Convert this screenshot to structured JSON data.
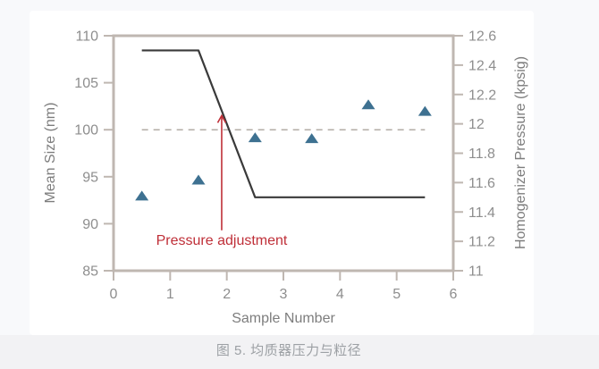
{
  "page": {
    "caption": "图 5. 均质器压力与粒径"
  },
  "chart_data": {
    "type": "combo",
    "subtypes": [
      "scatter",
      "line"
    ],
    "title": "",
    "grid": false,
    "legend": false,
    "x_axis": {
      "label": "Sample Number",
      "range": [
        0,
        6
      ],
      "ticks": [
        0,
        1,
        2,
        3,
        4,
        5,
        6
      ],
      "tick_labels": [
        "0",
        "1",
        "2",
        "3",
        "4",
        "5",
        "6"
      ]
    },
    "y_left": {
      "label": "Mean Size (nm)",
      "range": [
        85,
        110
      ],
      "ticks": [
        85,
        90,
        95,
        100,
        105,
        110
      ],
      "tick_labels": [
        "85",
        "90",
        "95",
        "100",
        "105",
        "110"
      ]
    },
    "y_right": {
      "label": "Homogenizer Pressure (kpsig)",
      "range": [
        11,
        12.6
      ],
      "ticks": [
        11,
        11.2,
        11.4,
        11.6,
        11.8,
        12,
        12.2,
        12.4,
        12.6
      ],
      "tick_labels": [
        "11",
        "11.2",
        "11.4",
        "11.6",
        "11.8",
        "12",
        "12.2",
        "12.4",
        "12.6"
      ]
    },
    "series": [
      {
        "name": "target-size-dashed",
        "type": "dashed-line",
        "axis": "left",
        "color": "#b3aca6",
        "points": [
          [
            0.5,
            100
          ],
          [
            5.5,
            100
          ]
        ]
      },
      {
        "name": "homogenizer-pressure",
        "type": "line",
        "axis": "right",
        "color": "#3a3a3a",
        "points": [
          [
            0.5,
            12.5
          ],
          [
            1.5,
            12.5
          ],
          [
            2.5,
            11.5
          ],
          [
            5.5,
            11.5
          ]
        ]
      },
      {
        "name": "mean-size",
        "type": "scatter",
        "marker": "triangle",
        "axis": "left",
        "color": "#3e7191",
        "points": [
          [
            0.5,
            93
          ],
          [
            1.5,
            94.7
          ],
          [
            2.5,
            99.2
          ],
          [
            3.5,
            99.1
          ],
          [
            4.5,
            102.7
          ],
          [
            5.5,
            102
          ]
        ]
      }
    ],
    "annotation": {
      "text": "Pressure adjustment",
      "color": "#bf2f38",
      "arrow_x": 1.91,
      "arrow_y_from": 89.3,
      "arrow_y_to": 101.5
    },
    "style": {
      "frame_color": "#bfb7b1",
      "tick_text_color": "#8e8e8e",
      "axis_title_color": "#7d7d7d"
    }
  }
}
